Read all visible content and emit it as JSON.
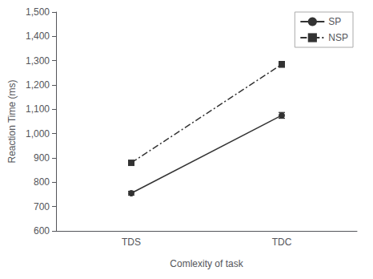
{
  "chart_data": {
    "type": "line",
    "categories": [
      "TDS",
      "TDC"
    ],
    "series": [
      {
        "name": "SP",
        "color": "#333333",
        "marker": "circle",
        "line_style": "solid",
        "values": [
          755,
          1075
        ],
        "errors": [
          8,
          12
        ]
      },
      {
        "name": "NSP",
        "color": "#333333",
        "marker": "square",
        "line_style": "dashdot",
        "values": [
          880,
          1285
        ],
        "errors": [
          8,
          12
        ]
      }
    ],
    "ylabel": "Reaction Time (ms)",
    "xlabel": "Comlexity of task",
    "ylim": [
      600,
      1500
    ],
    "yticks": [
      600,
      700,
      800,
      900,
      1000,
      1100,
      1200,
      1300,
      1400,
      1500
    ],
    "grid": false,
    "legend": "upper right"
  }
}
